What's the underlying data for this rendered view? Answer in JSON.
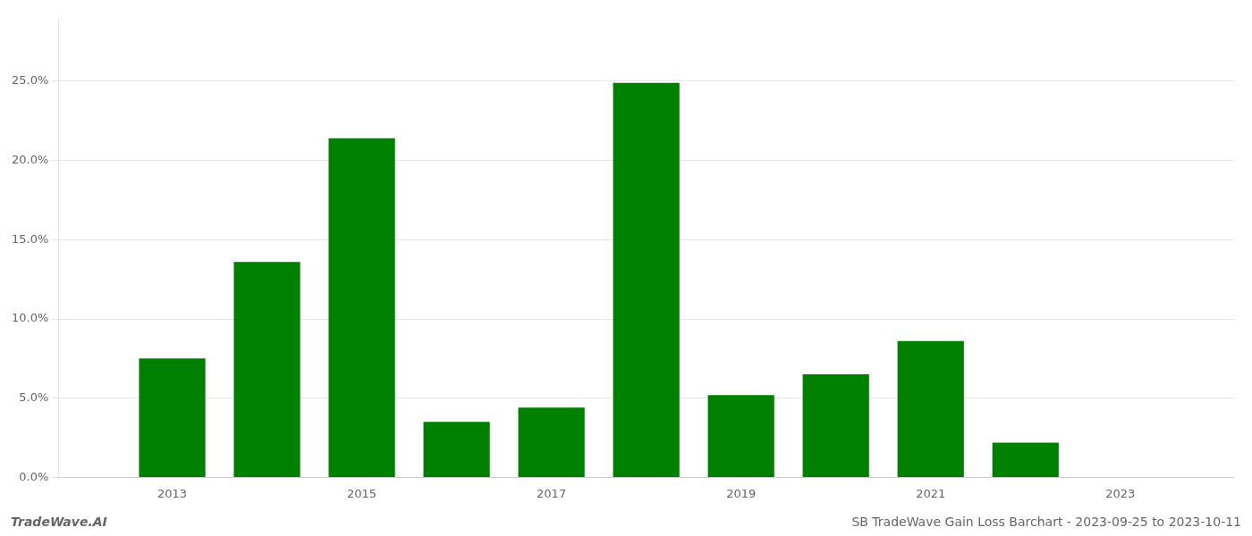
{
  "chart_data": {
    "type": "bar",
    "x": [
      2013,
      2014,
      2015,
      2016,
      2017,
      2018,
      2019,
      2020,
      2021,
      2022,
      2023
    ],
    "values": [
      0.075,
      0.136,
      0.214,
      0.035,
      0.044,
      0.249,
      0.052,
      0.065,
      0.086,
      0.022,
      0.0
    ],
    "color": "#008000",
    "xlim": [
      2011.8,
      2024.2
    ],
    "xticks": [
      2013,
      2015,
      2017,
      2019,
      2021,
      2023
    ],
    "ylim": [
      0,
      0.29
    ],
    "yticks": [
      {
        "value": 0.0,
        "label": "0.0%"
      },
      {
        "value": 0.05,
        "label": "5.0%"
      },
      {
        "value": 0.1,
        "label": "10.0%"
      },
      {
        "value": 0.15,
        "label": "15.0%"
      },
      {
        "value": 0.2,
        "label": "20.0%"
      },
      {
        "value": 0.25,
        "label": "25.0%"
      }
    ],
    "grid": true,
    "annotations": [
      "TradeWave.AI",
      "SB TradeWave Gain Loss Barchart - 2023-09-25 to 2023-10-11"
    ]
  }
}
